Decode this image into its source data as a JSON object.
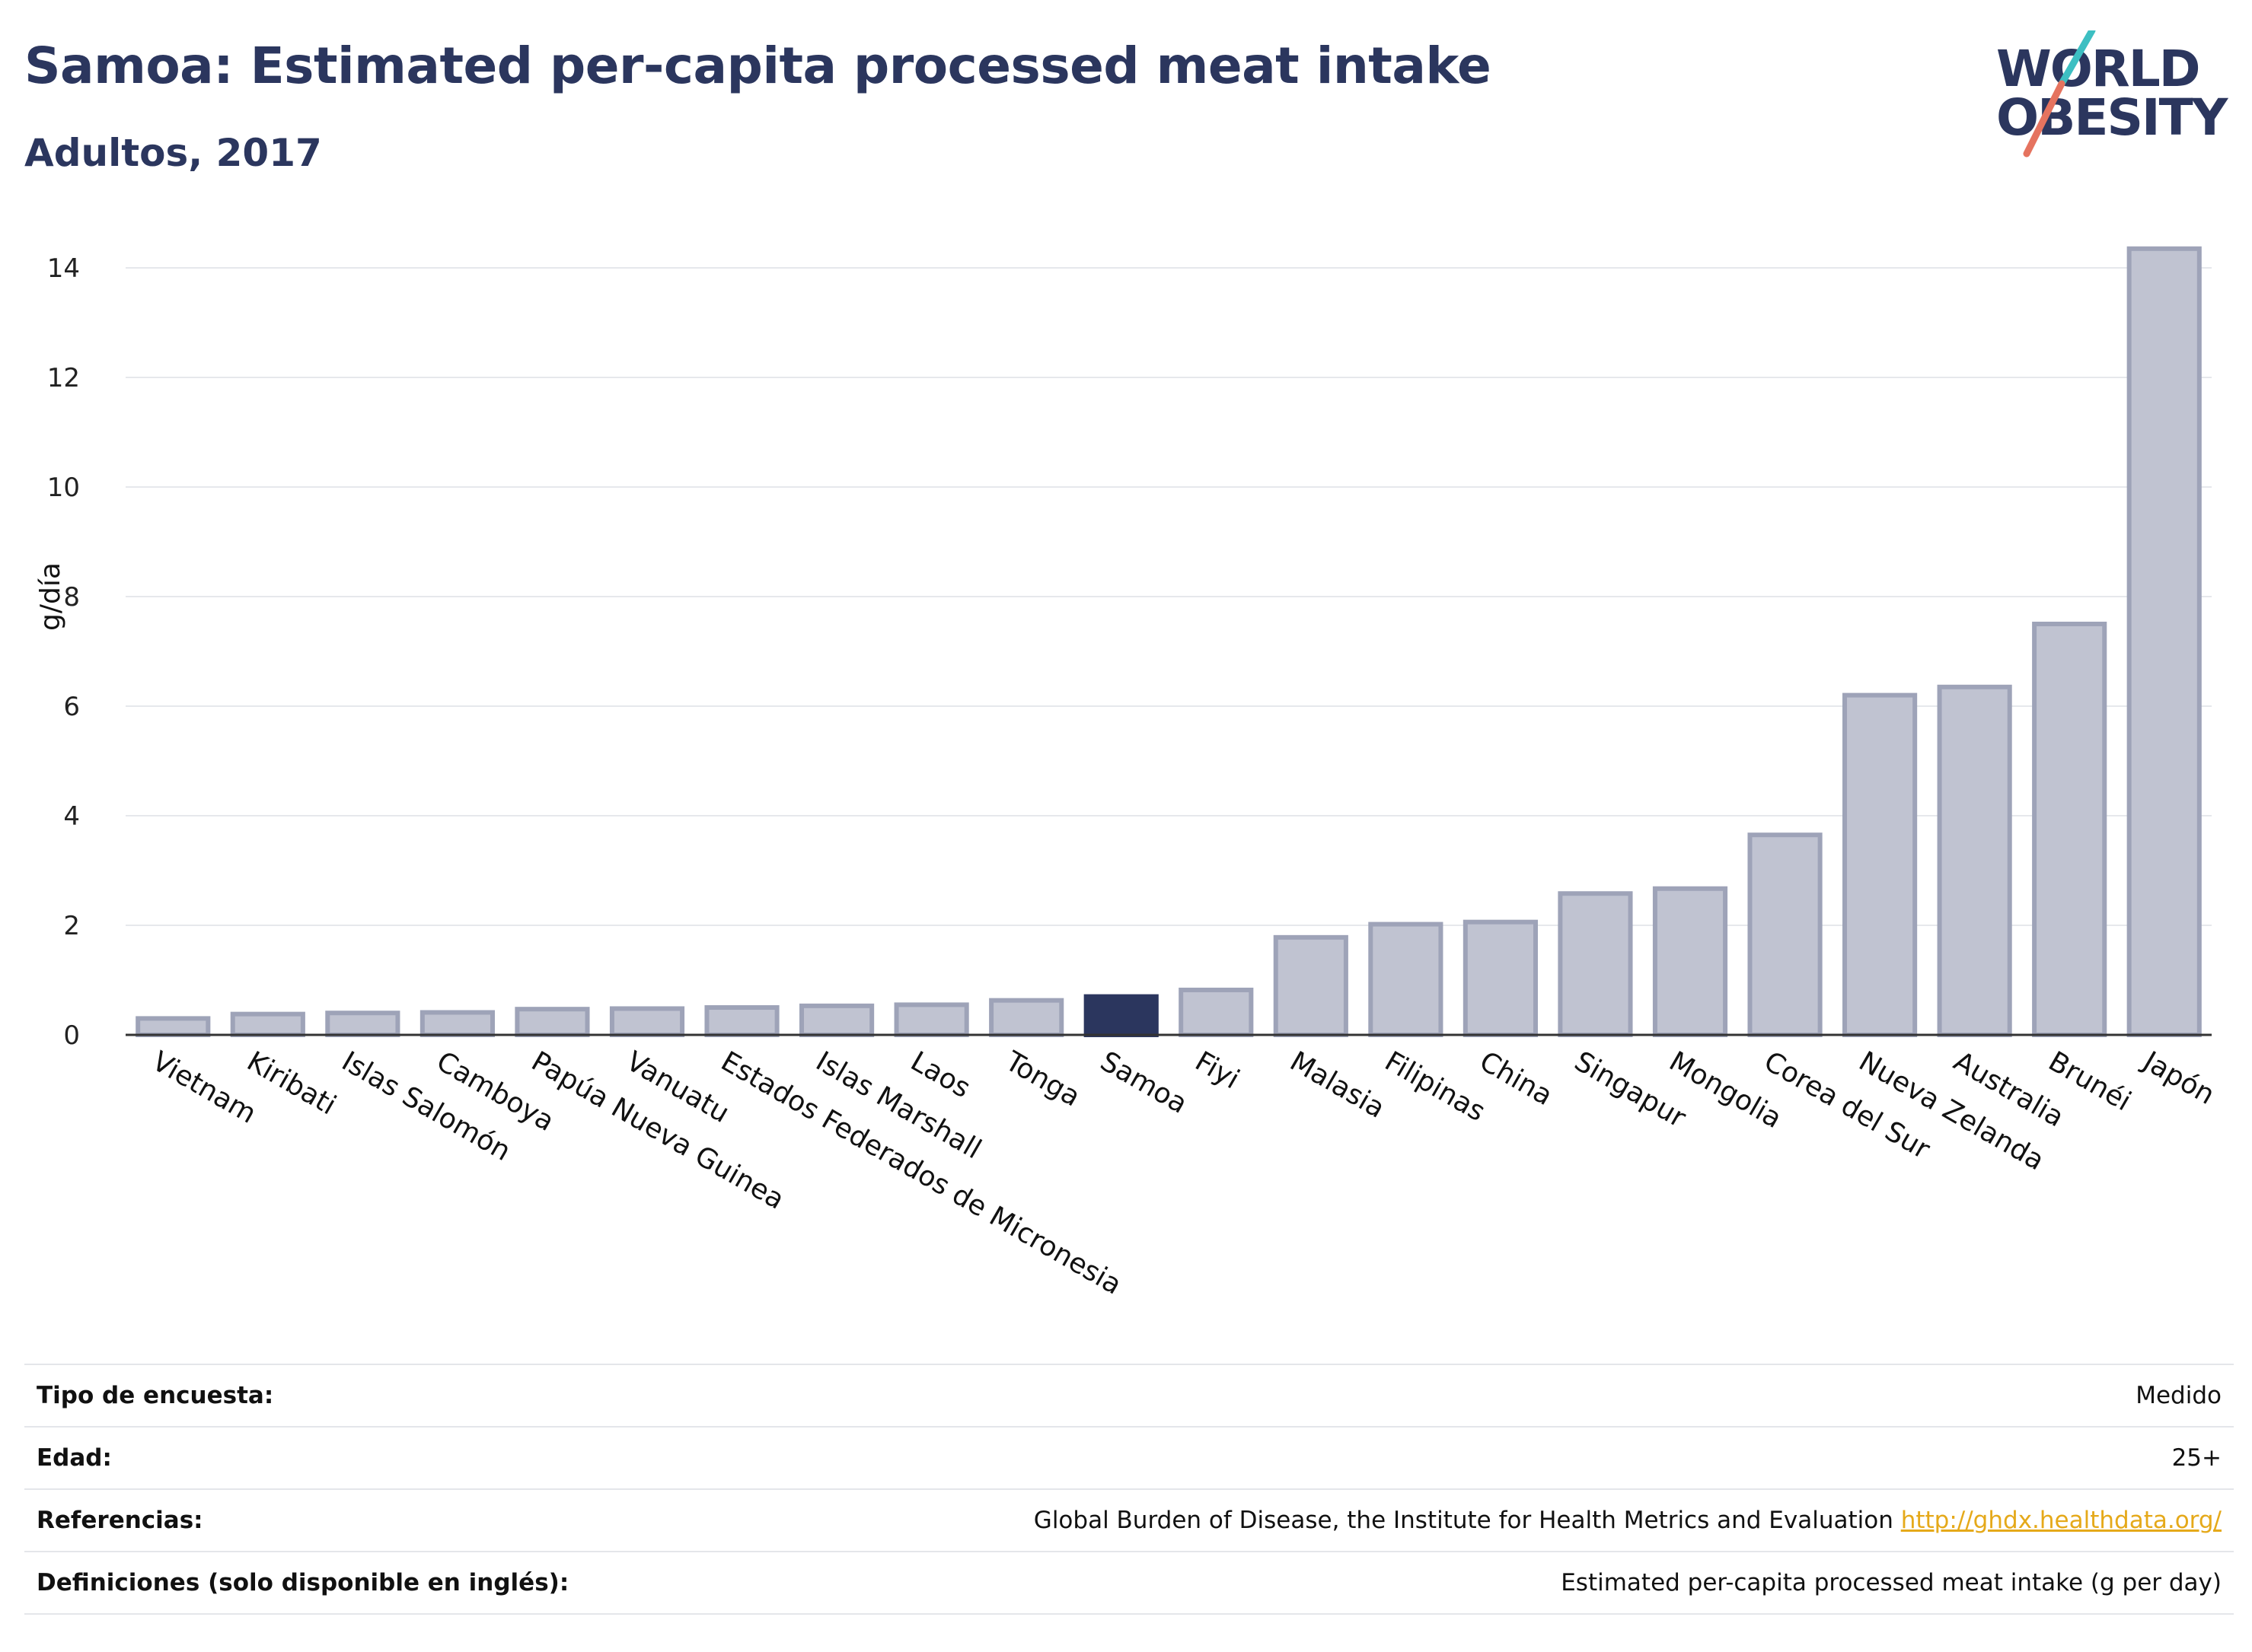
{
  "header": {
    "title": "Samoa: Estimated per-capita processed meat intake",
    "subtitle": "Adultos, 2017"
  },
  "logo": {
    "line1": "WORLD",
    "line2": "OBESITY",
    "colors": {
      "text": "#2b365e",
      "slash_top": "#3dbfc2",
      "slash_bottom": "#e5735f"
    }
  },
  "chart_data": {
    "type": "bar",
    "ylabel": "g/día",
    "ylim": [
      0,
      14.5
    ],
    "yticks": [
      0,
      2,
      4,
      6,
      8,
      10,
      12,
      14
    ],
    "grid": true,
    "highlight": "Samoa",
    "colors": {
      "bar": "#c0c3d1",
      "bar_border": "#9ea3b8",
      "highlight": "#2b365e"
    },
    "categories": [
      "Vietnam",
      "Kiribati",
      "Islas Salomón",
      "Camboya",
      "Papúa Nueva Guinea",
      "Vanuatu",
      "Estados Federados de Micronesia",
      "Islas Marshall",
      "Laos",
      "Tonga",
      "Samoa",
      "Fiyi",
      "Malasia",
      "Filipinas",
      "China",
      "Singapur",
      "Mongolia",
      "Corea del Sur",
      "Nueva Zelanda",
      "Australia",
      "Brunéi",
      "Japón"
    ],
    "values": [
      0.3,
      0.38,
      0.4,
      0.41,
      0.47,
      0.48,
      0.5,
      0.53,
      0.55,
      0.63,
      0.7,
      0.82,
      1.78,
      2.02,
      2.06,
      2.58,
      2.67,
      3.65,
      6.2,
      6.35,
      7.5,
      14.35
    ]
  },
  "info": {
    "rows": [
      {
        "label": "Tipo de encuesta:",
        "value": "Medido"
      },
      {
        "label": "Edad:",
        "value": "25+"
      },
      {
        "label": "Referencias:",
        "value": "Global Burden of Disease, the Institute for Health Metrics and Evaluation",
        "link": "http://ghdx.healthdata.org/"
      },
      {
        "label": "Definiciones (solo disponible en inglés):",
        "value": "Estimated per-capita processed meat intake (g per day)"
      }
    ]
  }
}
